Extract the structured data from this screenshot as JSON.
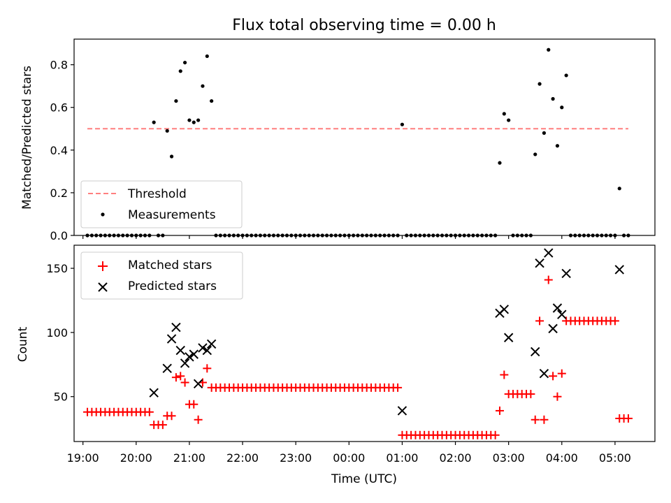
{
  "figure": {
    "title": "Flux total observing time = 0.00 h",
    "xlabel": "Time (UTC)"
  },
  "chart_data": [
    {
      "type": "scatter",
      "panel": "top",
      "ylabel": "Matched/Predicted stars",
      "xlim": [
        "18:50",
        "05:45"
      ],
      "ylim": [
        0,
        0.92
      ],
      "yticks": [
        0.0,
        0.2,
        0.4,
        0.6,
        0.8
      ],
      "ytick_labels": [
        "0.0",
        "0.2",
        "0.4",
        "0.6",
        "0.8"
      ],
      "xticks": [
        "19:00",
        "20:00",
        "21:00",
        "22:00",
        "23:00",
        "00:00",
        "01:00",
        "02:00",
        "03:00",
        "04:00",
        "05:00"
      ],
      "xtick_labels": [
        "19:00",
        "20:00",
        "21:00",
        "22:00",
        "23:00",
        "00:00",
        "01:00",
        "02:00",
        "03:00",
        "04:00",
        "05:00"
      ],
      "legend_position": "lower-left",
      "threshold": {
        "name": "Threshold",
        "y": 0.5,
        "x_range": [
          "19:05",
          "05:15"
        ],
        "color": "#ff7f7f",
        "style": "dashed"
      },
      "series": [
        {
          "name": "Measurements",
          "color": "#000000",
          "x": [
            "20:20",
            "20:35",
            "20:40",
            "20:45",
            "20:50",
            "20:55",
            "21:00",
            "21:05",
            "21:10",
            "21:15",
            "21:20",
            "21:25",
            "01:00",
            "02:50",
            "02:55",
            "03:00",
            "03:30",
            "03:35",
            "03:40",
            "03:45",
            "03:50",
            "03:55",
            "04:00",
            "04:05",
            "05:05"
          ],
          "y": [
            0.53,
            0.49,
            0.37,
            0.63,
            0.77,
            0.81,
            0.54,
            0.53,
            0.54,
            0.7,
            0.84,
            0.63,
            0.52,
            0.34,
            0.57,
            0.54,
            0.38,
            0.71,
            0.48,
            0.87,
            0.64,
            0.42,
            0.6,
            0.75,
            0.22
          ],
          "zero_x": [
            "19:05",
            "19:10",
            "19:15",
            "19:20",
            "19:25",
            "19:30",
            "19:35",
            "19:40",
            "19:45",
            "19:50",
            "19:55",
            "20:00",
            "20:05",
            "20:10",
            "20:15",
            "20:25",
            "20:30",
            "21:30",
            "21:35",
            "21:40",
            "21:45",
            "21:50",
            "21:55",
            "22:00",
            "22:05",
            "22:10",
            "22:15",
            "22:20",
            "22:25",
            "22:30",
            "22:35",
            "22:40",
            "22:45",
            "22:50",
            "22:55",
            "23:00",
            "23:05",
            "23:10",
            "23:15",
            "23:20",
            "23:25",
            "23:30",
            "23:35",
            "23:40",
            "23:45",
            "23:50",
            "23:55",
            "00:00",
            "00:05",
            "00:10",
            "00:15",
            "00:20",
            "00:25",
            "00:30",
            "00:35",
            "00:40",
            "00:45",
            "00:50",
            "00:55",
            "01:05",
            "01:10",
            "01:15",
            "01:20",
            "01:25",
            "01:30",
            "01:35",
            "01:40",
            "01:45",
            "01:50",
            "01:55",
            "02:00",
            "02:05",
            "02:10",
            "02:15",
            "02:20",
            "02:25",
            "02:30",
            "02:35",
            "02:40",
            "02:45",
            "03:05",
            "03:10",
            "03:15",
            "03:20",
            "03:25",
            "04:10",
            "04:15",
            "04:20",
            "04:25",
            "04:30",
            "04:35",
            "04:40",
            "04:45",
            "04:50",
            "04:55",
            "05:00",
            "05:10",
            "05:15"
          ]
        }
      ]
    },
    {
      "type": "scatter",
      "panel": "bottom",
      "ylabel": "Count",
      "xlabel": "Time (UTC)",
      "xlim": [
        "18:50",
        "05:45"
      ],
      "ylim": [
        15,
        168
      ],
      "yticks": [
        50,
        100,
        150
      ],
      "ytick_labels": [
        "50",
        "100",
        "150"
      ],
      "xticks": [
        "19:00",
        "20:00",
        "21:00",
        "22:00",
        "23:00",
        "00:00",
        "01:00",
        "02:00",
        "03:00",
        "04:00",
        "05:00"
      ],
      "xtick_labels": [
        "19:00",
        "20:00",
        "21:00",
        "22:00",
        "23:00",
        "00:00",
        "01:00",
        "02:00",
        "03:00",
        "04:00",
        "05:00"
      ],
      "legend_position": "upper-left",
      "series": [
        {
          "name": "Matched stars",
          "marker": "plus",
          "color": "#ff0000",
          "x": [
            "19:05",
            "19:10",
            "19:15",
            "19:20",
            "19:25",
            "19:30",
            "19:35",
            "19:40",
            "19:45",
            "19:50",
            "19:55",
            "20:00",
            "20:05",
            "20:10",
            "20:15",
            "20:20",
            "20:25",
            "20:30",
            "20:35",
            "20:40",
            "20:45",
            "20:50",
            "20:55",
            "21:00",
            "21:05",
            "21:10",
            "21:15",
            "21:20",
            "21:25",
            "21:30",
            "21:35",
            "21:40",
            "21:45",
            "21:50",
            "21:55",
            "22:00",
            "22:05",
            "22:10",
            "22:15",
            "22:20",
            "22:25",
            "22:30",
            "22:35",
            "22:40",
            "22:45",
            "22:50",
            "22:55",
            "23:00",
            "23:05",
            "23:10",
            "23:15",
            "23:20",
            "23:25",
            "23:30",
            "23:35",
            "23:40",
            "23:45",
            "23:50",
            "23:55",
            "00:00",
            "00:05",
            "00:10",
            "00:15",
            "00:20",
            "00:25",
            "00:30",
            "00:35",
            "00:40",
            "00:45",
            "00:50",
            "00:55",
            "01:00",
            "01:05",
            "01:10",
            "01:15",
            "01:20",
            "01:25",
            "01:30",
            "01:35",
            "01:40",
            "01:45",
            "01:50",
            "01:55",
            "02:00",
            "02:05",
            "02:10",
            "02:15",
            "02:20",
            "02:25",
            "02:30",
            "02:35",
            "02:40",
            "02:45",
            "02:50",
            "02:55",
            "03:00",
            "03:05",
            "03:10",
            "03:15",
            "03:20",
            "03:25",
            "03:30",
            "03:35",
            "03:40",
            "03:45",
            "03:50",
            "03:55",
            "04:00",
            "04:05",
            "04:10",
            "04:15",
            "04:20",
            "04:25",
            "04:30",
            "04:35",
            "04:40",
            "04:45",
            "04:50",
            "04:55",
            "05:00",
            "05:05",
            "05:10",
            "05:15"
          ],
          "y": [
            38,
            38,
            38,
            38,
            38,
            38,
            38,
            38,
            38,
            38,
            38,
            38,
            38,
            38,
            38,
            28,
            28,
            28,
            35,
            35,
            65,
            66,
            61,
            44,
            44,
            32,
            61,
            72,
            57,
            57,
            57,
            57,
            57,
            57,
            57,
            57,
            57,
            57,
            57,
            57,
            57,
            57,
            57,
            57,
            57,
            57,
            57,
            57,
            57,
            57,
            57,
            57,
            57,
            57,
            57,
            57,
            57,
            57,
            57,
            57,
            57,
            57,
            57,
            57,
            57,
            57,
            57,
            57,
            57,
            57,
            57,
            20,
            20,
            20,
            20,
            20,
            20,
            20,
            20,
            20,
            20,
            20,
            20,
            20,
            20,
            20,
            20,
            20,
            20,
            20,
            20,
            20,
            20,
            39,
            67,
            52,
            52,
            52,
            52,
            52,
            52,
            32,
            109,
            32,
            141,
            66,
            50,
            68,
            109,
            109,
            109,
            109,
            109,
            109,
            109,
            109,
            109,
            109,
            109,
            109,
            33,
            33,
            33
          ]
        },
        {
          "name": "Predicted stars",
          "marker": "x",
          "color": "#000000",
          "x": [
            "20:20",
            "20:35",
            "20:40",
            "20:45",
            "20:50",
            "20:55",
            "21:00",
            "21:05",
            "21:10",
            "21:15",
            "21:20",
            "21:25",
            "01:00",
            "02:50",
            "02:55",
            "03:00",
            "03:30",
            "03:35",
            "03:40",
            "03:45",
            "03:50",
            "03:55",
            "04:00",
            "04:05",
            "05:05"
          ],
          "y": [
            53,
            72,
            95,
            104,
            86,
            76,
            81,
            83,
            60,
            88,
            86,
            91,
            39,
            115,
            118,
            96,
            85,
            154,
            68,
            162,
            103,
            119,
            114,
            146,
            149
          ]
        }
      ]
    }
  ]
}
